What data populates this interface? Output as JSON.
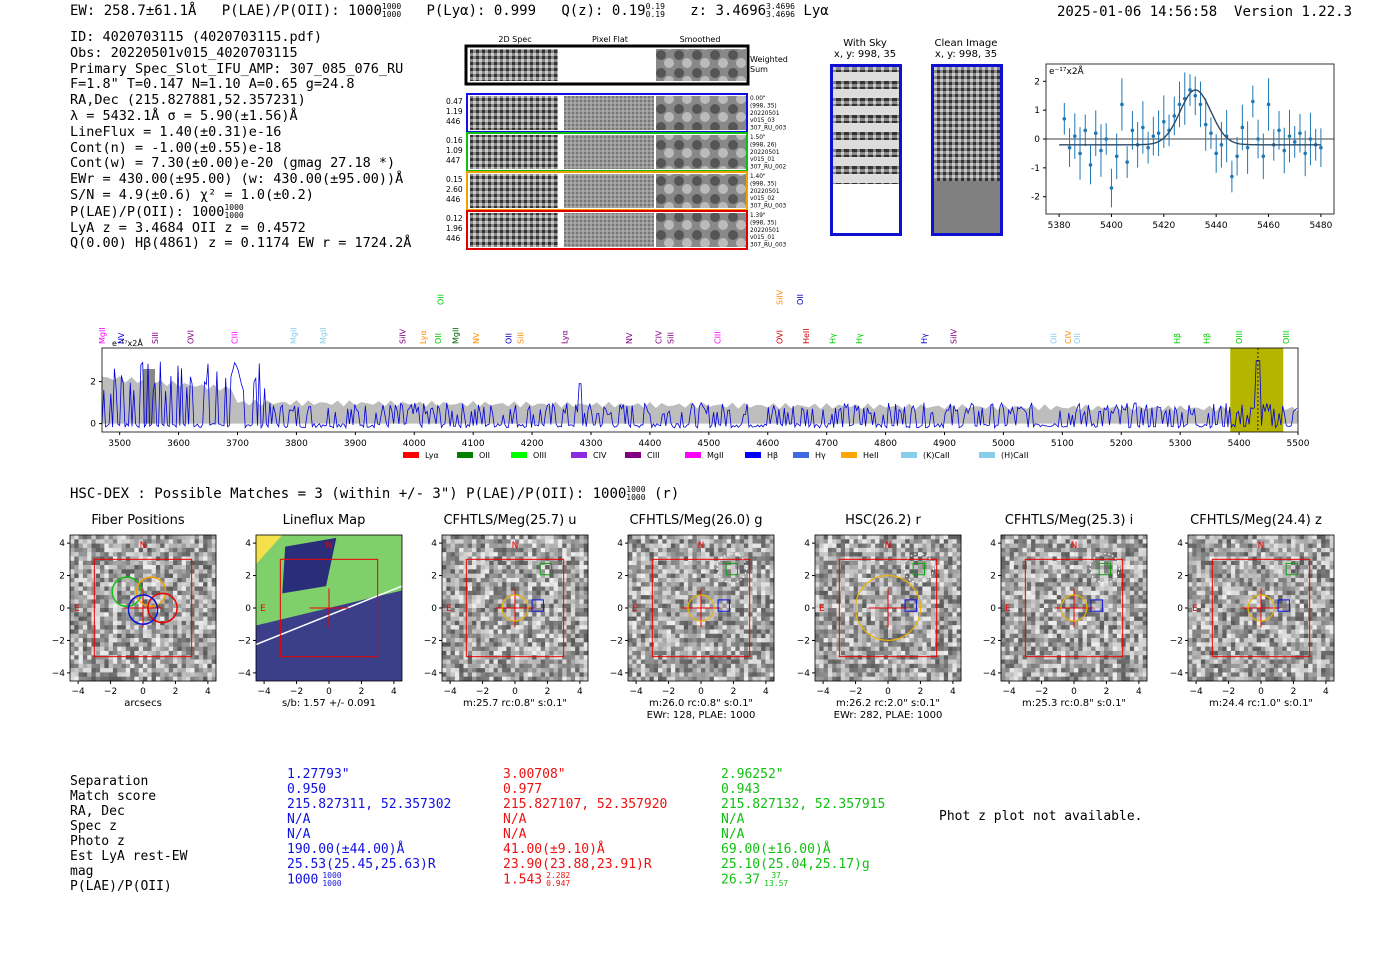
{
  "header": {
    "ew": "EW: 258.7±61.1Å",
    "plae_label": "P(LAE)/P(OII): 1000",
    "plae_sup": "1000",
    "plae_sub": "1000",
    "plya": "P(Lyα): 0.999",
    "qz_label": "Q(z): 0.19",
    "qz_sup": "0.19",
    "qz_sub": "0.19",
    "z_label": "z: 3.4696",
    "z_sup": "3.4696",
    "z_sub": "3.4696",
    "z_line": "Lyα",
    "datetime": "2025-01-06 14:56:58",
    "version": "Version 1.22.3"
  },
  "info": {
    "lines": [
      "ID: 4020703115 (4020703115.pdf)",
      "Obs: 20220501v015_4020703115",
      "Primary Spec_Slot_IFU_AMP: 307_085_076_RU",
      "F=1.8\"  T=0.147  N=1.10  A=0.65  g=24.8",
      "RA,Dec (215.827881,52.357231)",
      "λ = 5432.1Å   σ = 5.90(±1.56)Å",
      "LineFlux = 1.40(±0.31)e-16",
      "Cont(n) = -1.00(±0.55)e-18",
      "Cont(w) = 7.30(±0.00)e-20 (gmag 27.18 *)",
      "EWr = 430.00(±95.00) (w: 430.00(±95.00))Å",
      "S/N = 4.9(±0.6)  χ² = 1.0(±0.2)"
    ],
    "plae_line": "P(LAE)/P(OII): 1000",
    "plae_sup": "1000",
    "plae_sub": "1000",
    "lya_line": "LyA z = 3.4684  OII z = 0.4572",
    "q_line": "Q(0.00) Hβ(4861) z = 0.1174  EW r = 1724.2Å"
  },
  "cutouts": {
    "col_titles": [
      "2D Spec",
      "Pixel Flat",
      "Smoothed"
    ],
    "weighted_label": "Weighted\nSum",
    "rows": [
      {
        "left": [
          "0.47",
          "1.19",
          "446"
        ],
        "right": [
          "0.00\"",
          "(998, 35)",
          "20220501",
          "v015_03",
          "307_RU_003"
        ],
        "color": "#1010e0"
      },
      {
        "left": [
          "0.16",
          "1.09",
          "447"
        ],
        "right": [
          "1.50\"",
          "(998, 26)",
          "20220501",
          "v015_01",
          "307_RU_002"
        ],
        "color": "#10c010"
      },
      {
        "left": [
          "0.15",
          "2.60",
          "446"
        ],
        "right": [
          "1.40\"",
          "(998, 35)",
          "20220501",
          "v015_02",
          "307_RU_003"
        ],
        "color": "#f0a000"
      },
      {
        "left": [
          "0.12",
          "1.96",
          "446"
        ],
        "right": [
          "1.39\"",
          "(998, 35)",
          "20220501",
          "v015_01",
          "307_RU_003"
        ],
        "color": "#e00000"
      }
    ],
    "with_sky": {
      "title": "With Sky",
      "coords": "x, y: 998, 35"
    },
    "clean": {
      "title": "Clean Image",
      "coords": "x, y: 998, 35"
    }
  },
  "chart_data": [
    {
      "type": "scatter",
      "title": "",
      "unit_label": "e⁻¹⁷x2Å",
      "xlabel": "",
      "ylabel": "",
      "xlim": [
        5375,
        5485
      ],
      "ylim": [
        -2.6,
        2.6
      ],
      "xticks": [
        5380,
        5400,
        5420,
        5440,
        5460,
        5480
      ],
      "yticks": [
        2,
        1,
        0,
        -1,
        -2
      ],
      "x": [
        5382,
        5384,
        5386,
        5388,
        5390,
        5392,
        5394,
        5396,
        5398,
        5400,
        5402,
        5404,
        5406,
        5408,
        5410,
        5412,
        5414,
        5416,
        5418,
        5420,
        5422,
        5424,
        5426,
        5428,
        5430,
        5432,
        5434,
        5436,
        5438,
        5440,
        5442,
        5444,
        5446,
        5448,
        5450,
        5452,
        5454,
        5456,
        5458,
        5460,
        5462,
        5464,
        5466,
        5468,
        5470,
        5472,
        5474,
        5476,
        5478,
        5480
      ],
      "y": [
        0.7,
        -0.3,
        0.1,
        -0.5,
        0.3,
        -0.9,
        0.2,
        -0.4,
        0.0,
        -1.7,
        -0.6,
        1.2,
        -0.8,
        0.3,
        -0.2,
        0.4,
        -0.3,
        0.1,
        0.2,
        0.6,
        0.3,
        0.8,
        1.2,
        1.4,
        1.7,
        1.5,
        1.2,
        0.5,
        0.2,
        -0.5,
        -0.2,
        0.1,
        -1.3,
        -0.6,
        0.4,
        -0.3,
        1.3,
        0.0,
        -0.6,
        1.2,
        -0.2,
        0.3,
        -0.4,
        0.1,
        -0.1,
        0.2,
        -0.5,
        0.0,
        -0.2,
        -0.3
      ],
      "fit": {
        "center": 5432.1,
        "sigma": 5.9,
        "amplitude": 1.9,
        "baseline": -0.2
      }
    },
    {
      "type": "line",
      "title": "",
      "unit_label": "e⁻¹⁷x2Å",
      "xlim": [
        3470,
        5500
      ],
      "ylim": [
        -0.4,
        3.6
      ],
      "xticks": [
        3500,
        3600,
        3700,
        3800,
        3900,
        4000,
        4100,
        4200,
        4300,
        4400,
        4500,
        4600,
        4700,
        4800,
        4900,
        5000,
        5100,
        5200,
        5300,
        5400,
        5500
      ],
      "yticks": [
        0,
        2
      ],
      "highlight": [
        5385,
        5475
      ],
      "line_markers": [
        {
          "label": "MgII",
          "x": 3475,
          "color": "#ff00ff"
        },
        {
          "label": "NV",
          "x": 3507,
          "color": "#0000cc"
        },
        {
          "label": "SiII",
          "x": 3565,
          "color": "#800080"
        },
        {
          "label": "OVI",
          "x": 3625,
          "color": "#800080"
        },
        {
          "label": "CIII",
          "x": 3700,
          "color": "#ff00ff"
        },
        {
          "label": "MgII",
          "x": 3800,
          "color": "#87ceeb"
        },
        {
          "label": "MgII",
          "x": 3850,
          "color": "#87ceeb"
        },
        {
          "label": "SiIV",
          "x": 3985,
          "color": "#800080"
        },
        {
          "label": "Lyα",
          "x": 4020,
          "color": "#ff8c00"
        },
        {
          "label": "OII",
          "x": 4045,
          "color": "#00cc00"
        },
        {
          "label": "MgII",
          "x": 4075,
          "color": "#006400"
        },
        {
          "label": "NV",
          "x": 4110,
          "color": "#ff8c00"
        },
        {
          "label": "OII",
          "x": 4165,
          "color": "#0000cc"
        },
        {
          "label": "SiII",
          "x": 4185,
          "color": "#ff8c00"
        },
        {
          "label": "Lyα",
          "x": 4260,
          "color": "#800080"
        },
        {
          "label": "NV",
          "x": 4370,
          "color": "#800080"
        },
        {
          "label": "CIV",
          "x": 4420,
          "color": "#800080"
        },
        {
          "label": "SiII",
          "x": 4440,
          "color": "#800080"
        },
        {
          "label": "CIII",
          "x": 4520,
          "color": "#ff00ff"
        },
        {
          "label": "OVI",
          "x": 4625,
          "color": "#cc0000"
        },
        {
          "label": "HeII",
          "x": 4670,
          "color": "#cc0000"
        },
        {
          "label": "Hγ",
          "x": 4715,
          "color": "#00cc00"
        },
        {
          "label": "Hγ",
          "x": 4760,
          "color": "#00cc00"
        },
        {
          "label": "Hγ",
          "x": 4870,
          "color": "#0000cc"
        },
        {
          "label": "SiIV",
          "x": 4920,
          "color": "#800080"
        },
        {
          "label": "OII",
          "x": 5090,
          "color": "#87ceeb"
        },
        {
          "label": "CIV",
          "x": 5115,
          "color": "#ff8c00"
        },
        {
          "label": "OII",
          "x": 5130,
          "color": "#87ceeb"
        },
        {
          "label": "Hβ",
          "x": 5300,
          "color": "#00cc00"
        },
        {
          "label": "Hβ",
          "x": 5350,
          "color": "#00cc00"
        },
        {
          "label": "OIII",
          "x": 5405,
          "color": "#00cc00"
        },
        {
          "label": "OIII",
          "x": 5485,
          "color": "#00cc00"
        }
      ],
      "upper_markers": [
        {
          "label": "OII",
          "x": 4050,
          "color": "#00cc00"
        },
        {
          "label": "SiIV",
          "x": 4625,
          "color": "#ff8c00"
        },
        {
          "label": "OII",
          "x": 4660,
          "color": "#0000cc"
        }
      ],
      "legend": [
        {
          "label": "Lyα",
          "color": "#ff0000"
        },
        {
          "label": "OII",
          "color": "#008000"
        },
        {
          "label": "OIII",
          "color": "#00ff00"
        },
        {
          "label": "CIV",
          "color": "#8a2be2"
        },
        {
          "label": "CIII",
          "color": "#800080"
        },
        {
          "label": "MgII",
          "color": "#ff00ff"
        },
        {
          "label": "Hβ",
          "color": "#0000ff"
        },
        {
          "label": "Hγ",
          "color": "#4169e1"
        },
        {
          "label": "HeII",
          "color": "#ffa500"
        },
        {
          "label": "(K)CaII",
          "color": "#87ceeb"
        },
        {
          "label": "(H)CaII",
          "color": "#87ceeb"
        }
      ]
    }
  ],
  "hsc": {
    "title": "HSC-DEX : Possible Matches = 3 (within +/- 3\")  P(LAE)/P(OII): 1000",
    "sup": "1000",
    "sub": "1000",
    "band": "(r)",
    "panels": [
      {
        "title": "Fiber Positions",
        "cap1": "arcsecs",
        "cap2": ""
      },
      {
        "title": "Lineflux Map",
        "cap1": "s/b: 1.57 +/- 0.091",
        "cap2": ""
      },
      {
        "title": "CFHTLS/Meg(25.7) u",
        "cap1": "m:25.7 rc:0.8\"  s:0.1\"",
        "cap2": ""
      },
      {
        "title": "CFHTLS/Meg(26.0) g",
        "cap1": "m:26.0 rc:0.8\"  s:0.1\"",
        "cap2": "EWr: 128, PLAE: 1000"
      },
      {
        "title": "HSC(26.2) r",
        "cap1": "m:26.2 rc:2.0\"  s:0.1\"",
        "cap2": "EWr: 282, PLAE: 1000"
      },
      {
        "title": "CFHTLS/Meg(25.3) i",
        "cap1": "m:25.3 rc:0.8\"  s:0.1\"",
        "cap2": ""
      },
      {
        "title": "CFHTLS/Meg(24.4) z",
        "cap1": "m:24.4 rc:1.0\"  s:0.1\"",
        "cap2": ""
      }
    ],
    "axis_ticks": [
      "−4",
      "−2",
      "0",
      "2",
      "4"
    ],
    "n_label": "N",
    "e_label": "E"
  },
  "matches": {
    "labels": [
      "Separation",
      "Match score",
      "RA, Dec",
      "Spec z",
      "Photo z",
      "Est LyA rest-EW",
      "mag",
      "P(LAE)/P(OII)"
    ],
    "cols": [
      {
        "color": "#1010e0",
        "vals": [
          "1.27793\"",
          "0.950",
          "215.827311, 52.357302",
          "N/A",
          "N/A",
          "190.00(±44.00)Å",
          "25.53(25.45,25.63)R",
          "1000"
        ],
        "plae_sup": "1000",
        "plae_sub": "1000"
      },
      {
        "color": "#ee1010",
        "vals": [
          "3.00708\"",
          "0.977",
          "215.827107, 52.357920",
          "N/A",
          "N/A",
          "41.00(±9.10)Å",
          "23.90(23.88,23.91)R",
          "1.543"
        ],
        "plae_sup": "2.282",
        "plae_sub": "0.947"
      },
      {
        "color": "#10c010",
        "vals": [
          "2.96252\"",
          "0.943",
          "215.827132, 52.357915",
          "N/A",
          "N/A",
          "69.00(±16.00)Å",
          "25.10(25.04,25.17)g",
          "26.37"
        ],
        "plae_sup": "37",
        "plae_sub": "13.57"
      }
    ],
    "photz_note": "Phot z plot not available."
  }
}
